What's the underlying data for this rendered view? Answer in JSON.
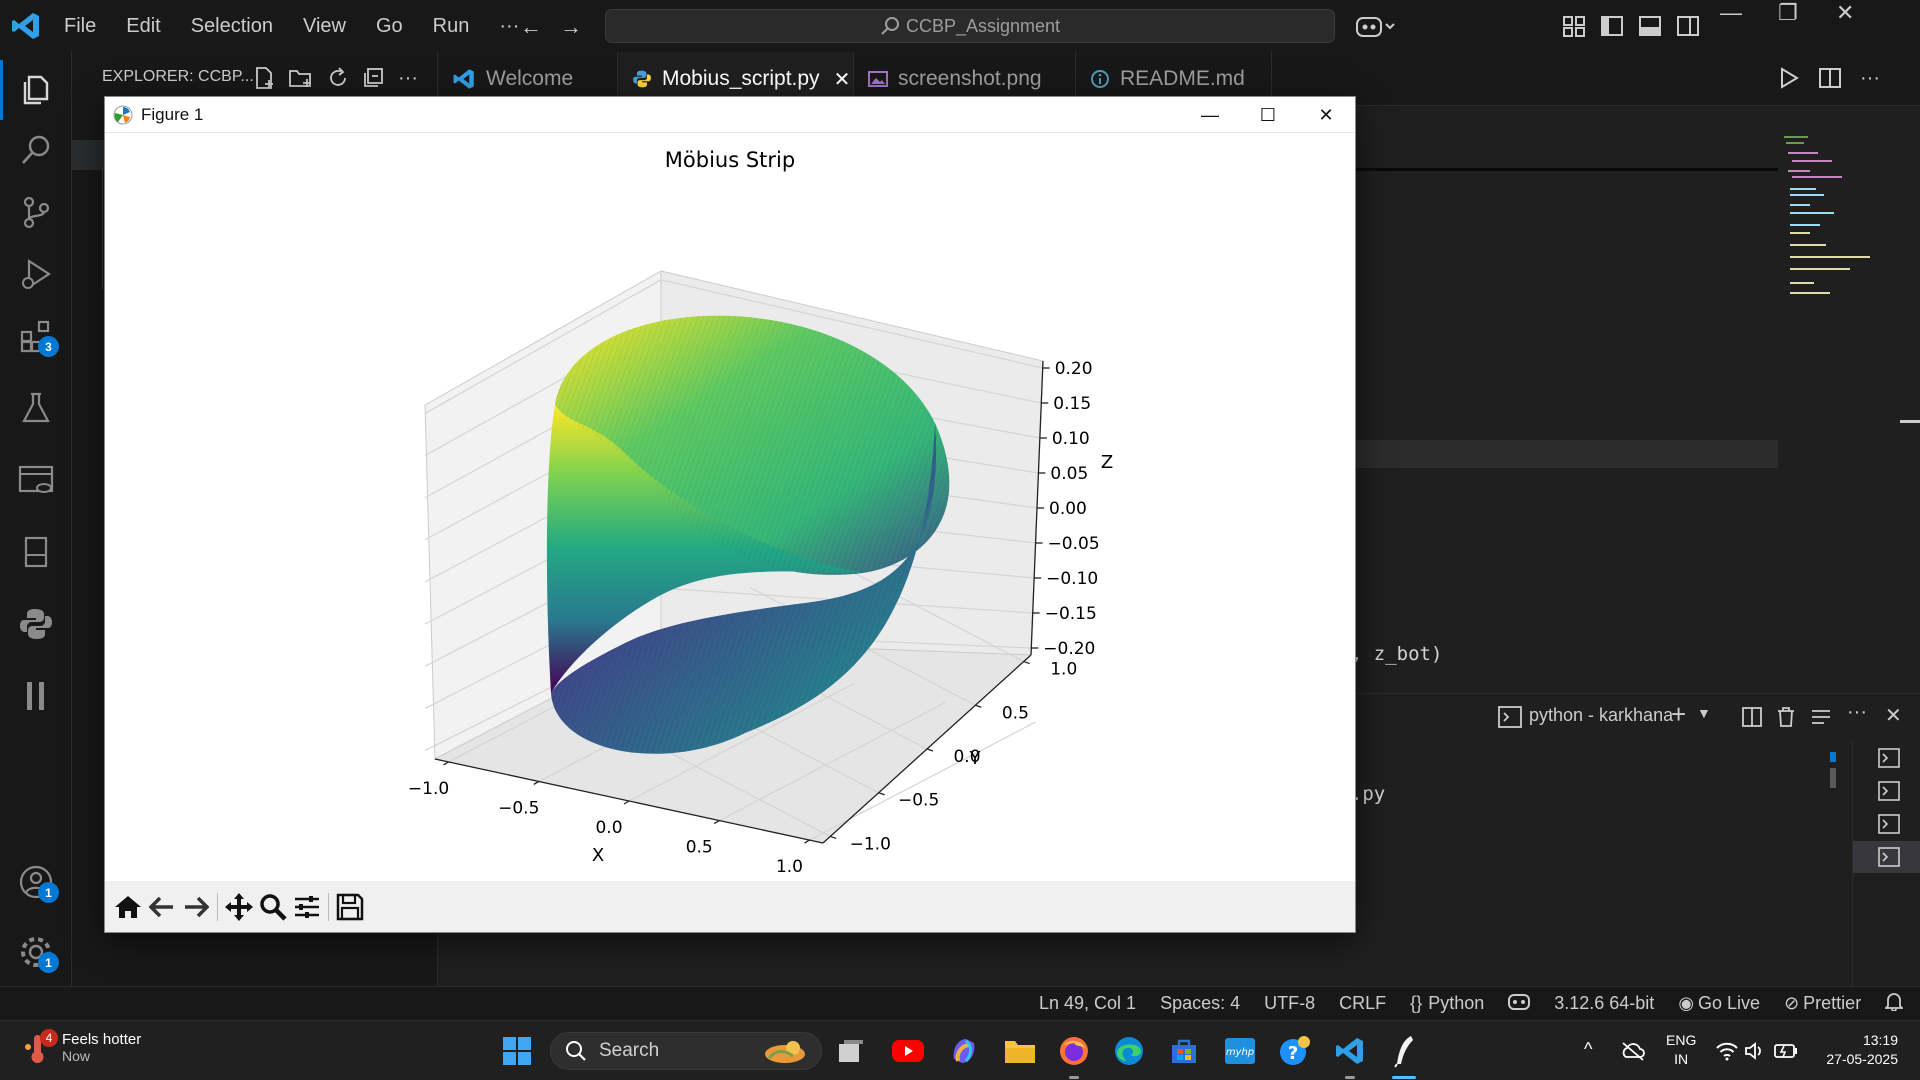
{
  "menu": [
    "File",
    "Edit",
    "Selection",
    "View",
    "Go",
    "Run",
    "···"
  ],
  "command_center": "CCBP_Assignment",
  "sidebar": {
    "title": "EXPLORER: CCBP..."
  },
  "tabs": [
    {
      "label": "Welcome",
      "icon": "vscode-logo-icon"
    },
    {
      "label": "Mobius_script.py",
      "icon": "python-file-icon",
      "active": true
    },
    {
      "label": "screenshot.png",
      "icon": "image-file-icon"
    },
    {
      "label": "README.md",
      "icon": "info-icon"
    }
  ],
  "activity_badges": {
    "extensions": "3",
    "accounts": "1",
    "manage": "1"
  },
  "editor": {
    "code_fragment_1": "ot, z_bot)",
    "code_fragment_2": "ot.py"
  },
  "panel": {
    "terminal_name": "python - karkhana"
  },
  "figure": {
    "window_title": "Figure 1",
    "toolbar": [
      "home",
      "back",
      "forward",
      "pan",
      "zoom",
      "configure",
      "save"
    ]
  },
  "chart_data": {
    "type": "surface3d",
    "title": "Möbius Strip",
    "xlabel": "X",
    "ylabel": "Y",
    "zlabel": "Z",
    "x_ticks": [
      "−1.0",
      "−0.5",
      "0.0",
      "0.5",
      "1.0"
    ],
    "y_ticks": [
      "−1.0",
      "−0.5",
      "0.0",
      "0.5",
      "1.0"
    ],
    "z_ticks": [
      "0.20",
      "0.15",
      "0.10",
      "0.05",
      "0.00",
      "−0.05",
      "−0.10",
      "−0.15",
      "−0.20"
    ],
    "xlim": [
      -1.0,
      1.0
    ],
    "ylim": [
      -1.0,
      1.0
    ],
    "zlim": [
      -0.2,
      0.2
    ],
    "colormap": "viridis",
    "grid": true
  },
  "statusbar": {
    "position": "Ln 49, Col 1",
    "spaces": "Spaces: 4",
    "encoding": "UTF-8",
    "eol": "CRLF",
    "language": "Python",
    "interpreter": "3.12.6 64-bit",
    "golive": "Go Live",
    "prettier": "Prettier"
  },
  "taskbar": {
    "weather_badge": "4",
    "weather_title": "Feels hotter",
    "weather_sub": "Now",
    "search": "Search",
    "lang1": "ENG",
    "lang2": "IN",
    "time": "13:19",
    "date": "27-05-2025"
  },
  "colors": {
    "accent": "#0078d4",
    "viridis_low": "#440154",
    "viridis_mid": "#21918c",
    "viridis_high": "#fde725"
  }
}
